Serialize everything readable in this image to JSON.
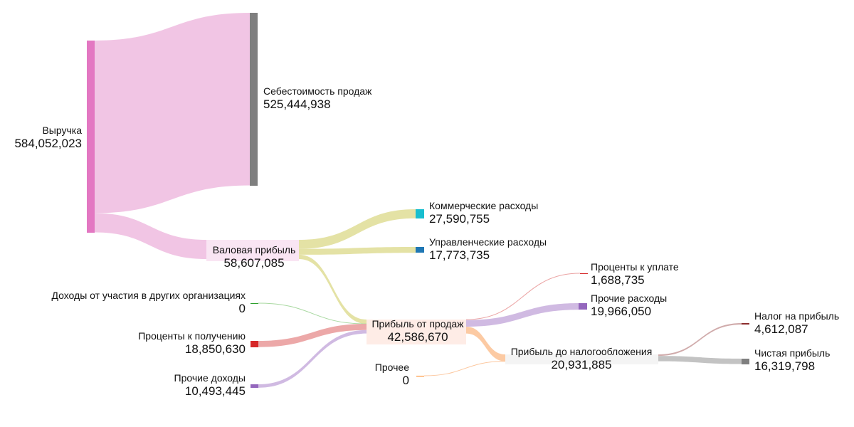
{
  "chart_data": {
    "type": "sankey",
    "title": "",
    "nodes": [
      {
        "id": "revenue",
        "name": "Выручка",
        "value": "584,052,023",
        "color": "#e377c2"
      },
      {
        "id": "cogs",
        "name": "Себестоимость продаж",
        "value": "525,444,938",
        "color": "#7f7f7f"
      },
      {
        "id": "gross",
        "name": "Валовая прибыль",
        "value": "58,607,085",
        "color": "#f7dcef"
      },
      {
        "id": "commercial",
        "name": "Коммерческие расходы",
        "value": "27,590,755",
        "color": "#17becf"
      },
      {
        "id": "admin",
        "name": "Управленческие расходы",
        "value": "17,773,735",
        "color": "#1f77b4"
      },
      {
        "id": "participation",
        "name": "Доходы от участия в других организациях",
        "value": "0",
        "color": "#2ca02c"
      },
      {
        "id": "interest_income",
        "name": "Проценты к получению",
        "value": "18,850,630",
        "color": "#d62728"
      },
      {
        "id": "other_income",
        "name": "Прочие доходы",
        "value": "10,493,445",
        "color": "#9467bd"
      },
      {
        "id": "sales_profit",
        "name": "Прибыль от продаж",
        "value": "42,586,670",
        "color": "#fde5dd"
      },
      {
        "id": "other",
        "name": "Прочее",
        "value": "0",
        "color": "#ff7f0e"
      },
      {
        "id": "interest_paid",
        "name": "Проценты к уплате",
        "value": "1,688,735",
        "color": "#d62728"
      },
      {
        "id": "other_expenses",
        "name": "Прочие расходы",
        "value": "19,966,050",
        "color": "#9467bd"
      },
      {
        "id": "pretax",
        "name": "Прибыль до налогообложения",
        "value": "20,931,885",
        "color": "#f0f0f0"
      },
      {
        "id": "tax",
        "name": "Налог на прибыль",
        "value": "4,612,087",
        "color": "#8c2d2d"
      },
      {
        "id": "net",
        "name": "Чистая прибыль",
        "value": "16,319,798",
        "color": "#7f7f7f"
      }
    ],
    "links": [
      {
        "source": "revenue",
        "target": "cogs",
        "value": 525444938,
        "color": "#f0c2e3"
      },
      {
        "source": "revenue",
        "target": "gross",
        "value": 58607085,
        "color": "#f0c2e3"
      },
      {
        "source": "gross",
        "target": "commercial",
        "value": 27590755,
        "color": "#e3e0a0"
      },
      {
        "source": "gross",
        "target": "admin",
        "value": 17773735,
        "color": "#e3e0a0"
      },
      {
        "source": "gross",
        "target": "sales_profit",
        "value": 13242595,
        "color": "#e3e0a0"
      },
      {
        "source": "participation",
        "target": "sales_profit",
        "value": 0,
        "color": "#a8d8a0"
      },
      {
        "source": "interest_income",
        "target": "sales_profit",
        "value": 18850630,
        "color": "#eba3a3"
      },
      {
        "source": "other_income",
        "target": "sales_profit",
        "value": 10493445,
        "color": "#cdb6e0"
      },
      {
        "source": "sales_profit",
        "target": "interest_paid",
        "value": 1688735,
        "color": "#eba3a3"
      },
      {
        "source": "sales_profit",
        "target": "other_expenses",
        "value": 19966050,
        "color": "#cdb6e0"
      },
      {
        "source": "sales_profit",
        "target": "pretax",
        "value": 20931885,
        "color": "#fcc79e"
      },
      {
        "source": "other",
        "target": "pretax",
        "value": 0,
        "color": "#fcc79e"
      },
      {
        "source": "pretax",
        "target": "tax",
        "value": 4612087,
        "color": "#cda7a7"
      },
      {
        "source": "pretax",
        "target": "net",
        "value": 16319798,
        "color": "#c0c0c0"
      }
    ]
  }
}
